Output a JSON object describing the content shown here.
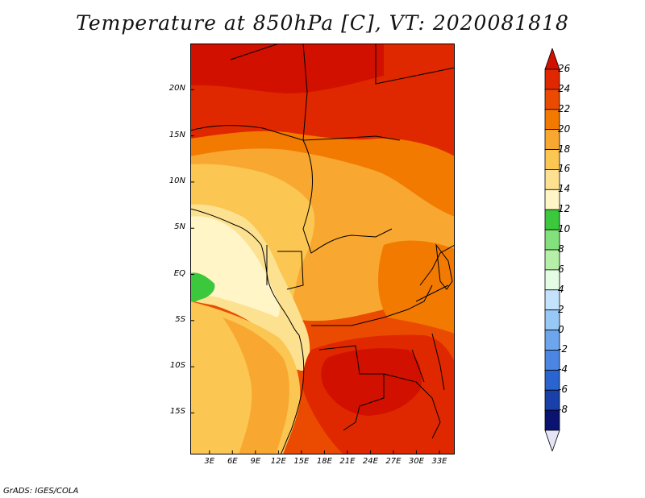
{
  "title": "Temperature at 850hPa [C], VT: 2020081818",
  "credit": "GrADS: IGES/COLA",
  "map": {
    "lat_labels": [
      "20N",
      "15N",
      "10N",
      "5N",
      "EQ",
      "5S",
      "10S",
      "15S"
    ],
    "lon_labels": [
      "3E",
      "6E",
      "9E",
      "12E",
      "15E",
      "18E",
      "21E",
      "24E",
      "27E",
      "30E",
      "33E"
    ],
    "lat_values": [
      20,
      15,
      10,
      5,
      0,
      -5,
      -10,
      -15
    ],
    "lon_values": [
      3,
      6,
      9,
      12,
      15,
      18,
      21,
      24,
      27,
      30,
      33
    ],
    "lon_range": [
      0.5,
      35
    ],
    "lat_range": [
      -19.5,
      25
    ]
  },
  "colorbar": {
    "labels": [
      "26",
      "24",
      "22",
      "20",
      "18",
      "16",
      "14",
      "12",
      "10",
      "8",
      "6",
      "4",
      "2",
      "0",
      "-2",
      "-4",
      "-6",
      "-8"
    ],
    "colors": [
      "#d21000",
      "#e02800",
      "#ea4b00",
      "#f27a00",
      "#f8a830",
      "#fbc652",
      "#fce190",
      "#fff5c6",
      "#3cc83c",
      "#84e07c",
      "#b6f0a8",
      "#e4fbe4",
      "#c4e2fc",
      "#98c8f6",
      "#6ea6ee",
      "#4a86e2",
      "#2a64d0",
      "#1840a8",
      "#0a1470",
      "#e4e4f6"
    ]
  }
}
